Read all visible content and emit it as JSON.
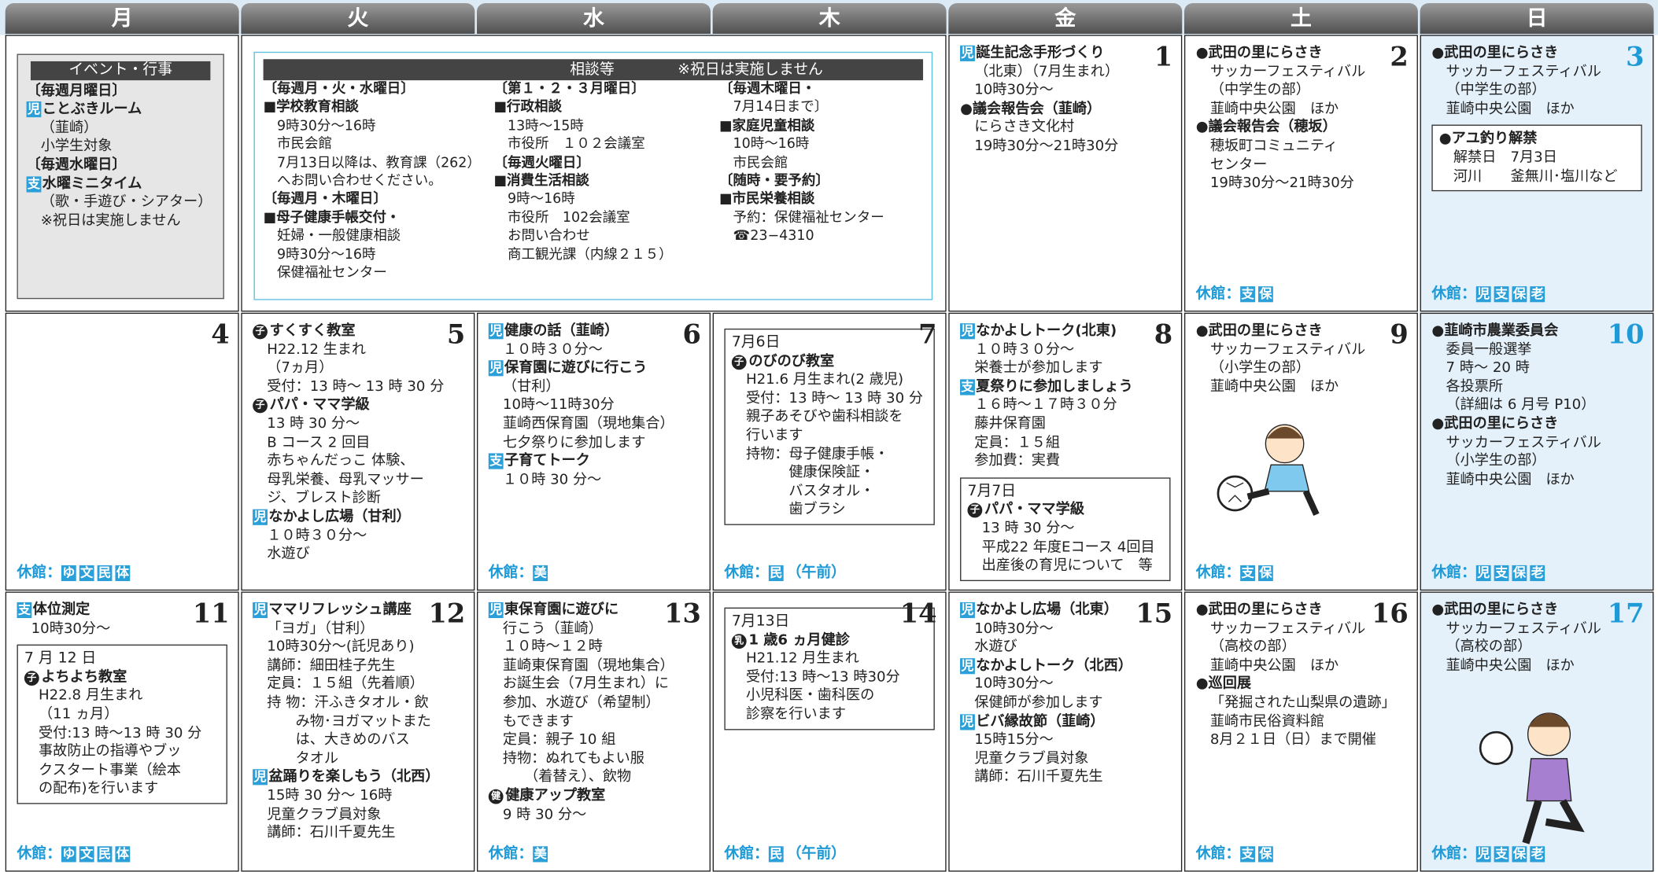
{
  "header": {
    "days": [
      "月",
      "火",
      "水",
      "木",
      "金",
      "土",
      "日"
    ]
  },
  "events": {
    "title": "イベント・行事",
    "blocks": [
      {
        "title": "〔毎週月曜日〕"
      },
      {
        "badge": "児",
        "title": "ことぶきルーム",
        "lines": [
          "（韮崎）",
          "小学生対象"
        ]
      },
      {
        "title": "〔毎週水曜日〕"
      },
      {
        "badge": "支",
        "title": "水曜ミニタイム",
        "lines": [
          "（歌・手遊び・シアター）"
        ]
      },
      {
        "lines": [
          "※祝日は実施しません"
        ]
      }
    ]
  },
  "consult": {
    "title": "相談等",
    "note": "※祝日は実施しません",
    "columns": [
      [
        {
          "title": "〔毎週月・火・水曜日〕"
        },
        {
          "title": "■学校教育相談",
          "lines": [
            "9時30分〜16時",
            "市民会館",
            "7月13日以降は、教育課（262）",
            "へお問い合わせください。"
          ]
        },
        {
          "title": "〔毎週月・木曜日〕"
        },
        {
          "title": "■母子健康手帳交付・",
          "lines": [
            "妊婦・一般健康相談",
            "9時30分〜16時",
            "保健福祉センター"
          ]
        }
      ],
      [
        {
          "title": "〔第１・２・３月曜日〕"
        },
        {
          "title": "■行政相談",
          "lines": [
            "13時〜15時",
            "市役所　１０２会議室"
          ]
        },
        {
          "title": "〔毎週火曜日〕"
        },
        {
          "title": "■消費生活相談",
          "lines": [
            "9時〜16時",
            "市役所　102会議室",
            "お問い合わせ",
            "商工観光課（内線２１５）"
          ]
        }
      ],
      [
        {
          "title": "〔毎週木曜日・",
          "lines": [
            "7月14日まで〕"
          ]
        },
        {
          "title": "■家庭児童相談",
          "lines": [
            "10時〜16時",
            "市民会館"
          ]
        },
        {
          "title": "〔随時・要予約〕"
        },
        {
          "title": "■市民栄養相談",
          "lines": [
            "予約：保健福祉センター",
            "☎23−4310"
          ]
        }
      ]
    ]
  },
  "week1": [
    {
      "date": "1",
      "blocks": [
        {
          "badge": "児",
          "title": "誕生記念手形づくり",
          "lines": [
            "（北東）（7月生まれ）",
            "10時30分〜"
          ]
        },
        {
          "title": "●議会報告会（韮崎）",
          "lines": [
            "にらさき文化村",
            "19時30分〜21時30分"
          ]
        }
      ]
    },
    {
      "date": "2",
      "blocks": [
        {
          "title": "●武田の里にらさき",
          "lines": [
            "サッカーフェスティバル",
            "（中学生の部）",
            "韮崎中央公園　ほか"
          ]
        },
        {
          "title": "●議会報告会（穂坂）",
          "lines": [
            "穂坂町コミュニティ",
            "センター",
            "19時30分〜21時30分"
          ]
        }
      ],
      "closed": {
        "label": "休館：",
        "badges": [
          "支",
          "保"
        ]
      }
    },
    {
      "date": "3",
      "blocks": [
        {
          "title": "●武田の里にらさき",
          "lines": [
            "サッカーフェスティバル",
            "（中学生の部）",
            "韮崎中央公園　ほか"
          ]
        }
      ],
      "box": {
        "blocks": [
          {
            "title": "●アユ釣り解禁",
            "lines": [
              "解禁日　7月3日",
              "河川　　釜無川･塩川など"
            ]
          }
        ]
      },
      "closed": {
        "label": "休館：",
        "badges": [
          "児",
          "支",
          "保",
          "老"
        ]
      }
    }
  ],
  "weeks": [
    [
      {
        "date": "4",
        "blocks": [],
        "closed": {
          "label": "休館：",
          "badges": [
            "ゆ",
            "文",
            "民",
            "体"
          ]
        }
      },
      {
        "date": "5",
        "blocks": [
          {
            "icon": "子",
            "title": "すくすく教室",
            "lines": [
              "H22.12 生まれ",
              "（7ヵ月）",
              "受付：13 時〜 13 時 30 分"
            ]
          },
          {
            "icon": "子",
            "title": "パパ・ママ学級",
            "lines": [
              "13 時 30 分〜",
              "B コース 2 回目",
              "赤ちゃんだっこ 体験、",
              "母乳栄養、母乳マッサー",
              "ジ、ブレスト診断"
            ]
          },
          {
            "badge": "児",
            "title": "なかよし広場（甘利）",
            "lines": [
              "１０時３０分〜",
              "水遊び"
            ]
          }
        ]
      },
      {
        "date": "6",
        "blocks": [
          {
            "badge": "児",
            "title": "健康の話（韮崎）",
            "lines": [
              "１０時３０分〜"
            ]
          },
          {
            "badge": "児",
            "title": "保育園に遊びに行こう",
            "lines": [
              "（甘利）",
              "10時〜11時30分",
              "韮崎西保育園（現地集合）",
              "七夕祭りに参加します"
            ]
          },
          {
            "badge": "支",
            "title": "子育てトーク",
            "lines": [
              "１０時 30 分〜"
            ]
          }
        ],
        "closed": {
          "label": "休館：",
          "badges": [
            "美"
          ]
        }
      },
      {
        "date": "7",
        "blocks": [],
        "box": {
          "label": "7月6日",
          "blocks": [
            {
              "icon": "子",
              "title": "のびのび教室",
              "lines": [
                "H21.6 月生まれ(2 歳児)",
                "受付：13 時〜 13 時 30 分",
                "親子あそびや歯科相談を",
                "行います",
                "持物：母子健康手帳・",
                "　　　健康保険証・",
                "　　　バスタオル・",
                "　　　歯ブラシ"
              ]
            }
          ]
        },
        "closed": {
          "label": "休館：",
          "badges": [
            "民"
          ],
          "note": "（午前）"
        }
      },
      {
        "date": "8",
        "blocks": [
          {
            "badge": "児",
            "title": "なかよしトーク(北東)",
            "lines": [
              "１０時３０分〜",
              "栄養士が参加します"
            ]
          },
          {
            "badge": "支",
            "title": "夏祭りに参加しましょう",
            "lines": [
              "１６時〜１７時３０分",
              "藤井保育園",
              "定員：１５組",
              "参加費：実費"
            ]
          }
        ],
        "box": {
          "label": "7月7日",
          "blocks": [
            {
              "icon": "子",
              "title": "パパ・ママ学級",
              "lines": [
                "13 時 30 分〜",
                "平成22 年度Eコース 4回目",
                "出産後の育児について　等"
              ]
            }
          ]
        }
      },
      {
        "date": "9",
        "blocks": [
          {
            "title": "●武田の里にらさき",
            "lines": [
              "サッカーフェスティバル",
              "（小学生の部）",
              "韮崎中央公園　ほか"
            ]
          }
        ],
        "closed": {
          "label": "休館：",
          "badges": [
            "支",
            "保"
          ]
        }
      },
      {
        "date": "10",
        "blocks": [
          {
            "title": "●韮崎市農業委員会",
            "lines": [
              "委員一般選挙",
              "7 時〜 20 時",
              "各投票所",
              "（詳細は 6 月号 P10）"
            ]
          },
          {
            "title": "●武田の里にらさき",
            "lines": [
              "サッカーフェスティバル",
              "（小学生の部）",
              "韮崎中央公園　ほか"
            ]
          }
        ],
        "closed": {
          "label": "休館：",
          "badges": [
            "児",
            "支",
            "保",
            "老"
          ]
        }
      }
    ],
    [
      {
        "date": "11",
        "blocks": [
          {
            "badge": "支",
            "title": "体位測定",
            "lines": [
              "10時30分〜"
            ]
          }
        ],
        "box": {
          "label": "7 月 12 日",
          "blocks": [
            {
              "icon": "子",
              "title": "よちよち教室",
              "lines": [
                "H22.8 月生まれ",
                "（11 ヵ月）",
                "受付:13 時〜13 時 30 分",
                "事故防止の指導やブッ",
                "クスタート事業（絵本",
                "の配布)を行います"
              ]
            }
          ]
        },
        "closed": {
          "label": "休館：",
          "badges": [
            "ゆ",
            "文",
            "民",
            "体"
          ]
        }
      },
      {
        "date": "12",
        "blocks": [
          {
            "badge": "児",
            "title": "ママリフレッシュ講座",
            "lines": [
              "「ヨガ」（甘利）",
              "10時30分〜(託児あり)",
              "講師：細田桂子先生",
              "定員：１５組（先着順）",
              "持 物：汗ふきタオル・飲",
              "　　み物･ヨガマットまた",
              "　　は、大きめのバス",
              "　　タオル"
            ]
          },
          {
            "badge": "児",
            "title": "盆踊りを楽しもう（北西）",
            "lines": [
              "15時 30 分〜 16時",
              "児童クラブ員対象",
              "講師：石川千夏先生"
            ]
          }
        ]
      },
      {
        "date": "13",
        "blocks": [
          {
            "badge": "児",
            "title": "東保育園に遊びに",
            "lines": [
              "行こう（韮崎）",
              "１０時〜１２時",
              "韮崎東保育園（現地集合）",
              "お誕生会（7月生まれ）に",
              "参加、水遊び（希望制）",
              "もできます",
              "定員：親子 10 組",
              "持物：ぬれてもよい服",
              "　　（着替え）、飲物"
            ]
          },
          {
            "icon": "健",
            "title": "健康アップ教室",
            "lines": [
              "9 時 30 分〜"
            ]
          }
        ],
        "closed": {
          "label": "休館：",
          "badges": [
            "美"
          ]
        }
      },
      {
        "date": "14",
        "blocks": [],
        "box": {
          "label": "7月13日",
          "blocks": [
            {
              "icon": "乳",
              "title": "1 歳6 ヵ月健診",
              "lines": [
                "H21.12 月生まれ",
                "受付:13 時〜13 時30分",
                "小児科医・歯科医の",
                "診察を行います"
              ]
            }
          ]
        },
        "closed": {
          "label": "休館：",
          "badges": [
            "民"
          ],
          "note": "（午前）"
        }
      },
      {
        "date": "15",
        "blocks": [
          {
            "badge": "児",
            "title": "なかよし広場（北東）",
            "lines": [
              "10時30分〜",
              "水遊び"
            ]
          },
          {
            "badge": "児",
            "title": "なかよしトーク（北西）",
            "lines": [
              "10時30分〜",
              "保健師が参加します"
            ]
          },
          {
            "badge": "児",
            "title": "ビバ縁故節（韮崎）",
            "lines": [
              "15時15分〜",
              "児童クラブ員対象",
              "講師：石川千夏先生"
            ]
          }
        ]
      },
      {
        "date": "16",
        "blocks": [
          {
            "title": "●武田の里にらさき",
            "lines": [
              "サッカーフェスティバル",
              "（高校の部）",
              "韮崎中央公園　ほか"
            ]
          },
          {
            "title": "●巡回展",
            "lines": [
              "「発掘された山梨県の遺跡」",
              "韮崎市民俗資料館",
              "8月２１日（日）まで開催"
            ]
          }
        ],
        "closed": {
          "label": "休館：",
          "badges": [
            "支",
            "保"
          ]
        }
      },
      {
        "date": "17",
        "blocks": [
          {
            "title": "●武田の里にらさき",
            "lines": [
              "サッカーフェスティバル",
              "（高校の部）",
              "韮崎中央公園　ほか"
            ]
          }
        ],
        "closed": {
          "label": "休館：",
          "badges": [
            "児",
            "支",
            "保",
            "老"
          ]
        }
      }
    ]
  ]
}
